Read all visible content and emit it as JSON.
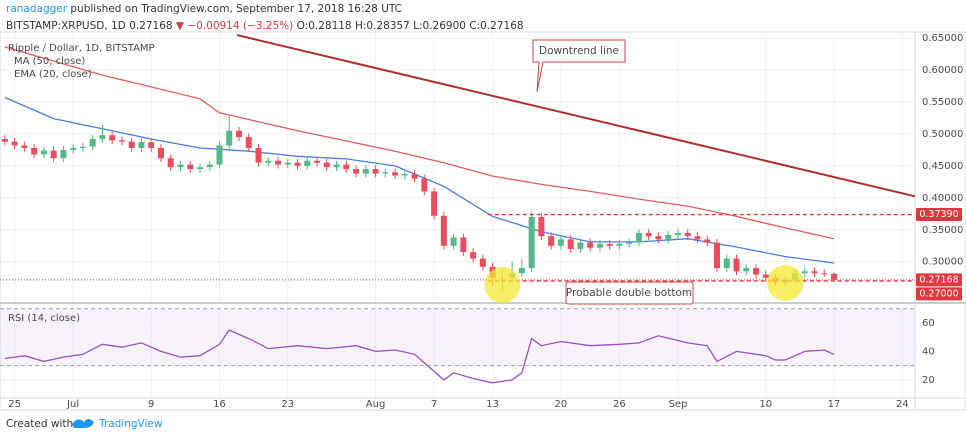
{
  "header": {
    "author": "ranadagger",
    "published": "published on TradingView.com, September 17, 2018 16:28 UTC",
    "symbol": "BITSTAMP:XRPUSD, 1D",
    "price": "0.27168",
    "change": "▼ −0.00914 (−3.25%)",
    "ohlc": "O:0.28118 H:0.28357 L:0.26900 C:0.27168"
  },
  "footer": {
    "created": "Created with",
    "brand": "TradingView"
  },
  "chart_data": [
    {
      "type": "candlestick",
      "title": "Ripple / Dollar, 1D, BITSTAMP",
      "up_color": "#53b987",
      "down_color": "#eb4d5c",
      "x": [
        0,
        1,
        2,
        3,
        4,
        5,
        6,
        7,
        8,
        9,
        10,
        11,
        12,
        13,
        14,
        15,
        16,
        17,
        18,
        19,
        20,
        21,
        22,
        23,
        24,
        25,
        26,
        27,
        28,
        29,
        30,
        31,
        32,
        33,
        34,
        35,
        36,
        37,
        38,
        39,
        40,
        41,
        42,
        43,
        44,
        45,
        46,
        47,
        48,
        49,
        50,
        51,
        52,
        53,
        54,
        55,
        56,
        57,
        58,
        59,
        60,
        61,
        62,
        63,
        64,
        65,
        66,
        67,
        68,
        69,
        70,
        71,
        72,
        73,
        74,
        75,
        76,
        77,
        78,
        79,
        80,
        81,
        82,
        83,
        84,
        85
      ],
      "candles": [
        [
          0.492,
          0.498,
          0.482,
          0.488
        ],
        [
          0.488,
          0.494,
          0.476,
          0.482
        ],
        [
          0.482,
          0.488,
          0.472,
          0.478
        ],
        [
          0.478,
          0.484,
          0.462,
          0.468
        ],
        [
          0.468,
          0.48,
          0.462,
          0.474
        ],
        [
          0.474,
          0.48,
          0.456,
          0.462
        ],
        [
          0.462,
          0.481,
          0.456,
          0.475
        ],
        [
          0.475,
          0.484,
          0.469,
          0.478
        ],
        [
          0.478,
          0.486,
          0.472,
          0.48
        ],
        [
          0.48,
          0.498,
          0.474,
          0.492
        ],
        [
          0.492,
          0.515,
          0.486,
          0.498
        ],
        [
          0.498,
          0.504,
          0.484,
          0.49
        ],
        [
          0.49,
          0.496,
          0.482,
          0.488
        ],
        [
          0.488,
          0.494,
          0.472,
          0.478
        ],
        [
          0.478,
          0.493,
          0.472,
          0.487
        ],
        [
          0.487,
          0.493,
          0.472,
          0.478
        ],
        [
          0.478,
          0.484,
          0.456,
          0.462
        ],
        [
          0.462,
          0.468,
          0.442,
          0.448
        ],
        [
          0.448,
          0.458,
          0.442,
          0.452
        ],
        [
          0.452,
          0.458,
          0.439,
          0.445
        ],
        [
          0.445,
          0.454,
          0.439,
          0.448
        ],
        [
          0.448,
          0.458,
          0.442,
          0.452
        ],
        [
          0.452,
          0.488,
          0.446,
          0.482
        ],
        [
          0.482,
          0.528,
          0.476,
          0.505
        ],
        [
          0.505,
          0.511,
          0.489,
          0.495
        ],
        [
          0.495,
          0.501,
          0.472,
          0.478
        ],
        [
          0.478,
          0.484,
          0.449,
          0.455
        ],
        [
          0.455,
          0.464,
          0.449,
          0.458
        ],
        [
          0.458,
          0.464,
          0.446,
          0.452
        ],
        [
          0.452,
          0.461,
          0.446,
          0.455
        ],
        [
          0.455,
          0.461,
          0.444,
          0.45
        ],
        [
          0.45,
          0.464,
          0.444,
          0.458
        ],
        [
          0.458,
          0.464,
          0.449,
          0.455
        ],
        [
          0.455,
          0.461,
          0.442,
          0.448
        ],
        [
          0.448,
          0.458,
          0.442,
          0.452
        ],
        [
          0.452,
          0.458,
          0.439,
          0.445
        ],
        [
          0.445,
          0.451,
          0.432,
          0.438
        ],
        [
          0.438,
          0.451,
          0.432,
          0.445
        ],
        [
          0.445,
          0.451,
          0.432,
          0.438
        ],
        [
          0.438,
          0.446,
          0.432,
          0.44
        ],
        [
          0.44,
          0.446,
          0.429,
          0.435
        ],
        [
          0.435,
          0.443,
          0.429,
          0.437
        ],
        [
          0.437,
          0.443,
          0.424,
          0.43
        ],
        [
          0.43,
          0.436,
          0.404,
          0.41
        ],
        [
          0.41,
          0.416,
          0.366,
          0.372
        ],
        [
          0.372,
          0.378,
          0.319,
          0.325
        ],
        [
          0.325,
          0.344,
          0.319,
          0.338
        ],
        [
          0.338,
          0.344,
          0.309,
          0.315
        ],
        [
          0.315,
          0.321,
          0.299,
          0.305
        ],
        [
          0.305,
          0.311,
          0.286,
          0.292
        ],
        [
          0.292,
          0.298,
          0.262,
          0.275
        ],
        [
          0.275,
          0.29,
          0.252,
          0.275
        ],
        [
          0.275,
          0.3,
          0.269,
          0.282
        ],
        [
          0.282,
          0.305,
          0.276,
          0.29
        ],
        [
          0.29,
          0.378,
          0.284,
          0.37
        ],
        [
          0.37,
          0.376,
          0.334,
          0.34
        ],
        [
          0.34,
          0.346,
          0.319,
          0.325
        ],
        [
          0.325,
          0.341,
          0.319,
          0.335
        ],
        [
          0.335,
          0.341,
          0.314,
          0.32
        ],
        [
          0.32,
          0.336,
          0.314,
          0.33
        ],
        [
          0.33,
          0.336,
          0.316,
          0.322
        ],
        [
          0.322,
          0.334,
          0.316,
          0.328
        ],
        [
          0.328,
          0.334,
          0.319,
          0.325
        ],
        [
          0.325,
          0.334,
          0.319,
          0.328
        ],
        [
          0.328,
          0.336,
          0.322,
          0.33
        ],
        [
          0.33,
          0.351,
          0.324,
          0.345
        ],
        [
          0.345,
          0.351,
          0.334,
          0.34
        ],
        [
          0.34,
          0.346,
          0.329,
          0.335
        ],
        [
          0.335,
          0.348,
          0.329,
          0.342
        ],
        [
          0.342,
          0.351,
          0.336,
          0.345
        ],
        [
          0.345,
          0.351,
          0.334,
          0.34
        ],
        [
          0.34,
          0.346,
          0.329,
          0.335
        ],
        [
          0.335,
          0.341,
          0.324,
          0.33
        ],
        [
          0.33,
          0.336,
          0.284,
          0.29
        ],
        [
          0.29,
          0.311,
          0.284,
          0.305
        ],
        [
          0.305,
          0.311,
          0.279,
          0.285
        ],
        [
          0.285,
          0.296,
          0.279,
          0.29
        ],
        [
          0.29,
          0.296,
          0.274,
          0.28
        ],
        [
          0.28,
          0.286,
          0.269,
          0.275
        ],
        [
          0.275,
          0.281,
          0.262,
          0.268
        ],
        [
          0.268,
          0.278,
          0.262,
          0.272
        ],
        [
          0.272,
          0.288,
          0.266,
          0.282
        ],
        [
          0.282,
          0.291,
          0.276,
          0.285
        ],
        [
          0.285,
          0.291,
          0.276,
          0.282
        ],
        [
          0.282,
          0.288,
          0.276,
          0.28118
        ],
        [
          0.28118,
          0.28357,
          0.269,
          0.27168
        ]
      ],
      "series": [
        {
          "name": "MA (50, close)",
          "color": "#e35d5d",
          "x": [
            0,
            10,
            20,
            22,
            30,
            40,
            45,
            50,
            55,
            60,
            65,
            70,
            75,
            80,
            85
          ],
          "values": [
            0.636,
            0.592,
            0.555,
            0.533,
            0.505,
            0.473,
            0.455,
            0.434,
            0.421,
            0.41,
            0.398,
            0.387,
            0.371,
            0.353,
            0.336
          ]
        },
        {
          "name": "EMA (20, close)",
          "color": "#4a7de0",
          "x": [
            0,
            5,
            10,
            15,
            20,
            25,
            30,
            35,
            40,
            45,
            50,
            55,
            60,
            65,
            70,
            75,
            80,
            85
          ],
          "values": [
            0.557,
            0.524,
            0.508,
            0.492,
            0.478,
            0.473,
            0.465,
            0.461,
            0.45,
            0.418,
            0.371,
            0.347,
            0.331,
            0.331,
            0.336,
            0.323,
            0.308,
            0.298
          ]
        }
      ],
      "trendline": {
        "color": "#b22e2e",
        "x": [
          23.8,
          93.3
        ],
        "values": [
          0.6547,
          0.4024
        ]
      },
      "levels": [
        {
          "value": 0.3739,
          "label": "0.37390",
          "from": 49.5
        },
        {
          "value": 0.27,
          "label": "0.27000",
          "from": 49.5
        }
      ],
      "last_price": {
        "value": 0.27168,
        "label": "0.27168"
      },
      "level_color": "#e0383e",
      "annotations": [
        {
          "text": "Downtrend line"
        },
        {
          "text": "Probable double bottom"
        }
      ],
      "highlights": [
        {
          "x": 51,
          "value": 0.2636
        },
        {
          "x": 80,
          "value": 0.2668
        }
      ],
      "highlight_color": "#f7e733",
      "xlim": [
        -0.5,
        93.3
      ],
      "xticks": [
        {
          "value": 1,
          "label": "25"
        },
        {
          "value": 7,
          "label": "Jul"
        },
        {
          "value": 15,
          "label": "9"
        },
        {
          "value": 22,
          "label": "16"
        },
        {
          "value": 29,
          "label": "23"
        },
        {
          "value": 38,
          "label": "Aug"
        },
        {
          "value": 44,
          "label": "7"
        },
        {
          "value": 50,
          "label": "13"
        },
        {
          "value": 57,
          "label": "20"
        },
        {
          "value": 63,
          "label": "26"
        },
        {
          "value": 69,
          "label": "Sep"
        },
        {
          "value": 78,
          "label": "10"
        },
        {
          "value": 85,
          "label": "17"
        },
        {
          "value": 92,
          "label": "24"
        }
      ],
      "ylim": [
        0.237,
        0.6595
      ],
      "yticks": [
        {
          "value": 0.65,
          "label": "0.65000"
        },
        {
          "value": 0.6,
          "label": "0.60000"
        },
        {
          "value": 0.55,
          "label": "0.55000"
        },
        {
          "value": 0.5,
          "label": "0.50000"
        },
        {
          "value": 0.45,
          "label": "0.45000"
        },
        {
          "value": 0.4,
          "label": "0.40000"
        },
        {
          "value": 0.35,
          "label": "0.35000"
        },
        {
          "value": 0.3,
          "label": "0.30000"
        }
      ],
      "grid": true
    },
    {
      "type": "line",
      "title": "RSI (14, close)",
      "series": [
        {
          "color": "#9c4fc4",
          "x": [
            0,
            2,
            4,
            6,
            8,
            10,
            12,
            14,
            16,
            18,
            20,
            22,
            23,
            25,
            27,
            30,
            33,
            36,
            38,
            40,
            42,
            44,
            45,
            46,
            48,
            50,
            52,
            53,
            54,
            55,
            57,
            60,
            63,
            65,
            67,
            70,
            72,
            73,
            75,
            78,
            79,
            80,
            82,
            84,
            85
          ],
          "values": [
            35,
            37,
            33,
            36,
            38,
            45,
            43,
            46,
            40,
            36,
            37,
            45,
            55,
            49,
            42,
            44,
            42,
            44,
            40,
            41,
            38,
            26,
            20,
            25,
            21,
            18,
            20,
            25,
            49,
            44,
            47,
            44,
            45,
            46,
            51,
            46,
            44,
            33,
            40,
            37,
            34,
            34,
            40,
            41,
            38
          ]
        }
      ],
      "bands": [
        30,
        70
      ],
      "band_color": "#9c4fc4",
      "ylim": [
        8,
        72.6
      ],
      "yticks": [
        60,
        40,
        20
      ],
      "grid": true
    }
  ]
}
